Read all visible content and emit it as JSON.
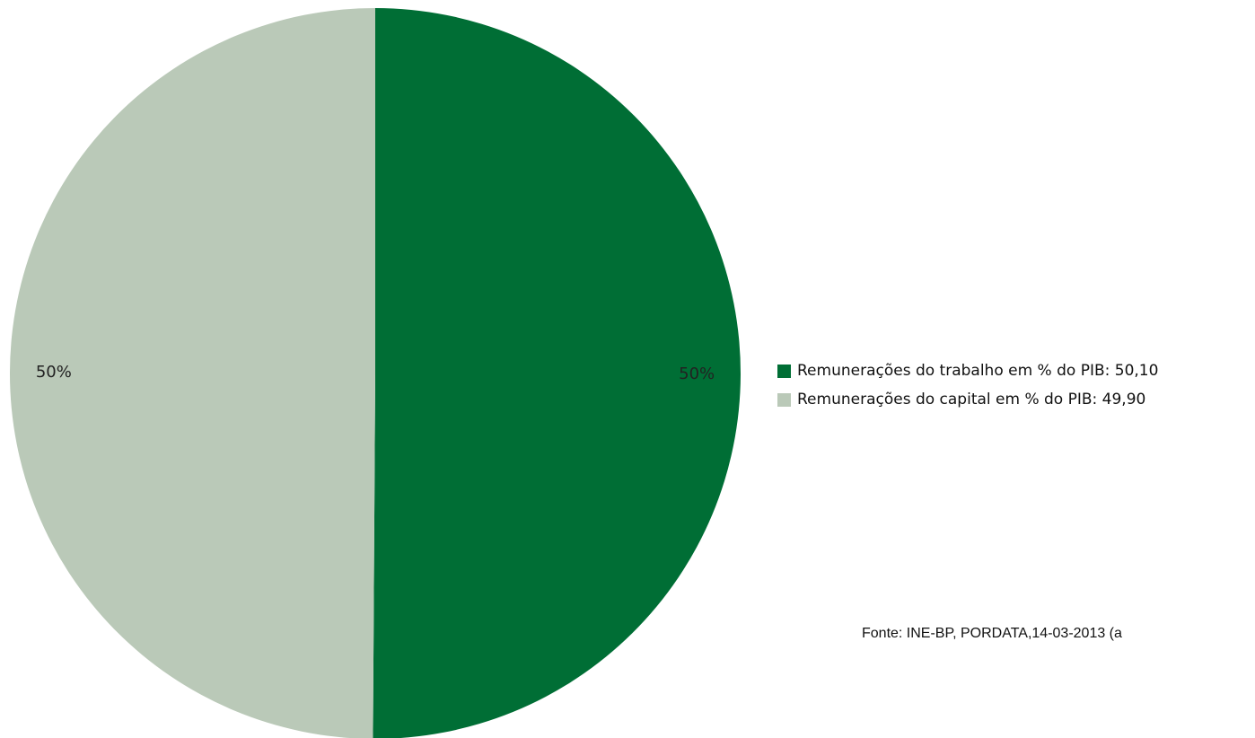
{
  "chart_data": {
    "type": "pie",
    "slices": [
      {
        "name": "Remunerações do trabalho em % do PIB: 50,10",
        "value": 50.1,
        "label": "50%",
        "color": "#006e35"
      },
      {
        "name": "Remunerações do capital em % do PIB: 49,90",
        "value": 49.9,
        "label": "50%",
        "color": "#bac9b8"
      }
    ],
    "legend_position": "right",
    "source": "Fonte: INE-BP, PORDATA,14-03-2013 (a"
  }
}
